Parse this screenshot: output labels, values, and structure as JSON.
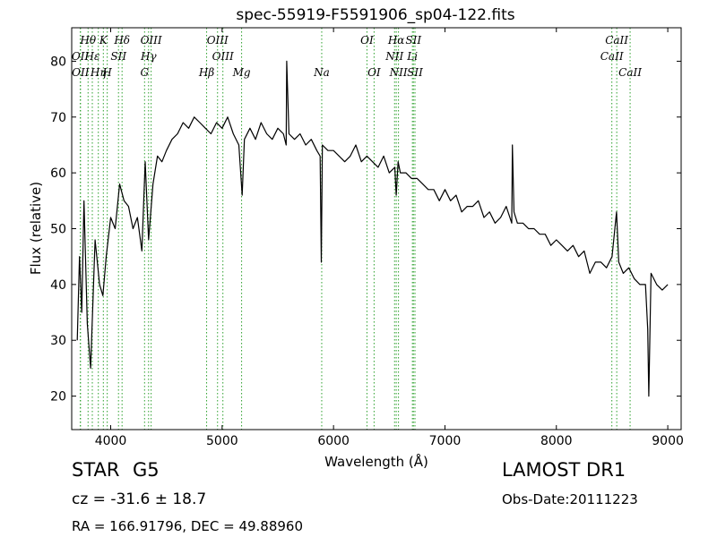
{
  "chart_data": {
    "type": "line",
    "title": "spec-55919-F5591906_sp04-122.fits",
    "xlabel": "Wavelength (Å)",
    "ylabel": "Flux (relative)",
    "xlim": [
      3650,
      9120
    ],
    "ylim": [
      14,
      86
    ],
    "xticks": [
      4000,
      5000,
      6000,
      7000,
      8000,
      9000
    ],
    "yticks": [
      20,
      30,
      40,
      50,
      60,
      70,
      80
    ],
    "grid": false,
    "series": [
      {
        "color": "#000000",
        "x": [
          3700,
          3720,
          3740,
          3760,
          3790,
          3820,
          3860,
          3900,
          3930,
          3960,
          4000,
          4040,
          4080,
          4120,
          4160,
          4200,
          4240,
          4280,
          4310,
          4340,
          4380,
          4420,
          4460,
          4500,
          4550,
          4600,
          4650,
          4700,
          4750,
          4800,
          4850,
          4900,
          4950,
          5000,
          5050,
          5100,
          5150,
          5180,
          5200,
          5250,
          5300,
          5350,
          5400,
          5450,
          5500,
          5550,
          5575,
          5580,
          5600,
          5650,
          5700,
          5750,
          5800,
          5850,
          5880,
          5890,
          5900,
          5950,
          6000,
          6050,
          6100,
          6150,
          6200,
          6250,
          6300,
          6350,
          6400,
          6450,
          6500,
          6550,
          6563,
          6580,
          6600,
          6650,
          6700,
          6750,
          6800,
          6850,
          6900,
          6950,
          7000,
          7050,
          7100,
          7150,
          7200,
          7250,
          7300,
          7350,
          7400,
          7450,
          7500,
          7550,
          7600,
          7605,
          7620,
          7650,
          7700,
          7750,
          7800,
          7850,
          7900,
          7950,
          8000,
          8050,
          8100,
          8150,
          8200,
          8250,
          8300,
          8350,
          8400,
          8450,
          8500,
          8540,
          8560,
          8600,
          8650,
          8700,
          8750,
          8800,
          8820,
          8830,
          8850,
          8900,
          8950,
          9000
        ],
        "y": [
          30,
          45,
          35,
          55,
          33,
          25,
          48,
          40,
          38,
          45,
          52,
          50,
          58,
          55,
          54,
          50,
          52,
          46,
          62,
          48,
          58,
          63,
          62,
          64,
          66,
          67,
          69,
          68,
          70,
          69,
          68,
          67,
          69,
          68,
          70,
          67,
          65,
          56,
          66,
          68,
          66,
          69,
          67,
          66,
          68,
          67,
          65,
          80,
          67,
          66,
          67,
          65,
          66,
          64,
          63,
          44,
          65,
          64,
          64,
          63,
          62,
          63,
          65,
          62,
          63,
          62,
          61,
          63,
          60,
          61,
          56,
          62,
          60,
          60,
          59,
          59,
          58,
          57,
          57,
          55,
          57,
          55,
          56,
          53,
          54,
          54,
          55,
          52,
          53,
          51,
          52,
          54,
          51,
          65,
          53,
          51,
          51,
          50,
          50,
          49,
          49,
          47,
          48,
          47,
          46,
          47,
          45,
          46,
          42,
          44,
          44,
          43,
          45,
          53,
          44,
          42,
          43,
          41,
          40,
          40,
          32,
          20,
          42,
          40,
          39,
          40
        ]
      }
    ],
    "annotations": [
      {
        "label": "Hθ",
        "x": 3797,
        "row": 1
      },
      {
        "label": "K",
        "x": 3934,
        "row": 1
      },
      {
        "label": "Hδ",
        "x": 4102,
        "row": 1
      },
      {
        "label": "OIII",
        "x": 4363,
        "row": 1
      },
      {
        "label": "OIII",
        "x": 4959,
        "row": 1
      },
      {
        "label": "OI",
        "x": 6300,
        "row": 1
      },
      {
        "label": "Hα",
        "x": 6563,
        "row": 1
      },
      {
        "label": "SII",
        "x": 6717,
        "row": 1
      },
      {
        "label": "CaII",
        "x": 8542,
        "row": 1
      },
      {
        "label": "OII",
        "x": 3727,
        "row": 2
      },
      {
        "label": "Hε",
        "x": 3835,
        "row": 2
      },
      {
        "label": "SII",
        "x": 4070,
        "row": 2
      },
      {
        "label": "Hγ",
        "x": 4340,
        "row": 2
      },
      {
        "label": "OIII",
        "x": 5007,
        "row": 2
      },
      {
        "label": "NII",
        "x": 6548,
        "row": 2
      },
      {
        "label": "Li",
        "x": 6708,
        "row": 2
      },
      {
        "label": "CaII",
        "x": 8498,
        "row": 2
      },
      {
        "label": "OII",
        "x": 3729,
        "row": 3
      },
      {
        "label": "Hη",
        "x": 3889,
        "row": 3
      },
      {
        "label": "H",
        "x": 3969,
        "row": 3
      },
      {
        "label": "G",
        "x": 4304,
        "row": 3
      },
      {
        "label": "Hβ",
        "x": 4861,
        "row": 3
      },
      {
        "label": "Mg",
        "x": 5175,
        "row": 3
      },
      {
        "label": "Na",
        "x": 5894,
        "row": 3
      },
      {
        "label": "OI",
        "x": 6364,
        "row": 3
      },
      {
        "label": "NII",
        "x": 6583,
        "row": 3
      },
      {
        "label": "SII",
        "x": 6731,
        "row": 3
      },
      {
        "label": "CaII",
        "x": 8662,
        "row": 3
      }
    ],
    "lines": [
      3727,
      3729,
      3797,
      3835,
      3889,
      3934,
      3969,
      4070,
      4102,
      4304,
      4340,
      4363,
      4861,
      4959,
      5007,
      5175,
      5894,
      6300,
      6364,
      6548,
      6563,
      6583,
      6708,
      6717,
      6731,
      8498,
      8542,
      8662
    ],
    "line_color": "#2ca02c"
  },
  "info": {
    "class": "STAR",
    "subclass": "G5",
    "cz": "cz = -31.6 ± 18.7",
    "radec": "RA = 166.91796, DEC = 49.88960",
    "survey": "LAMOST DR1",
    "obsdate": "Obs-Date:20111223"
  }
}
